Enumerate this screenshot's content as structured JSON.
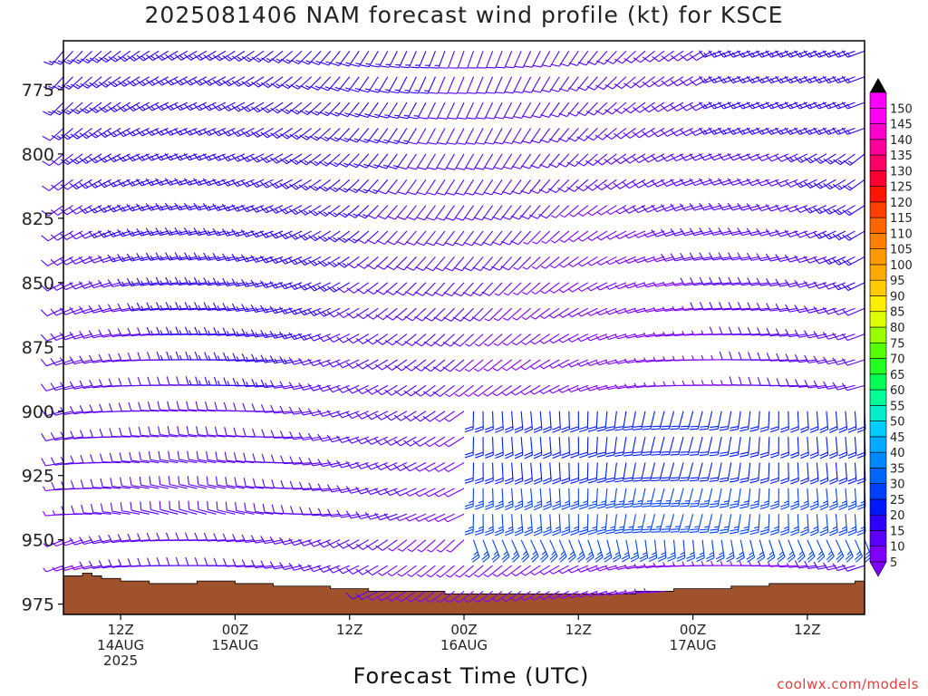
{
  "title": "2025081406 NAM forecast wind profile (kt) for KSCE",
  "credit": "coolwx.com/models",
  "chart_data": {
    "type": "wind-barb",
    "title": "2025081406 NAM forecast wind profile (kt) for KSCE",
    "xlabel": "Forecast Time (UTC)",
    "ylabel": "",
    "y_axis": {
      "ticks": [
        775,
        800,
        825,
        850,
        875,
        900,
        925,
        950,
        975
      ],
      "ylim": [
        979,
        756
      ],
      "units": "hPa"
    },
    "x_axis": {
      "ticks": [
        {
          "hour": 12,
          "lines": [
            "12Z",
            "14AUG",
            "2025"
          ]
        },
        {
          "hour": 24,
          "lines": [
            "00Z",
            "15AUG"
          ]
        },
        {
          "hour": 36,
          "lines": [
            "12Z"
          ]
        },
        {
          "hour": 48,
          "lines": [
            "00Z",
            "16AUG"
          ]
        },
        {
          "hour": 60,
          "lines": [
            "12Z"
          ]
        },
        {
          "hour": 72,
          "lines": [
            "00Z",
            "17AUG"
          ]
        },
        {
          "hour": 84,
          "lines": [
            "12Z"
          ]
        }
      ],
      "xlim": [
        6,
        90
      ],
      "units": "hours after 2025-08-14 00Z"
    },
    "colorbar": {
      "labels": [
        5,
        10,
        15,
        20,
        25,
        30,
        35,
        40,
        45,
        50,
        55,
        60,
        65,
        70,
        75,
        80,
        85,
        90,
        95,
        100,
        105,
        110,
        115,
        120,
        125,
        130,
        135,
        140,
        145,
        150
      ],
      "colors": [
        "#8000ff",
        "#5a00ff",
        "#2d00ff",
        "#0018ff",
        "#0040ff",
        "#0064ff",
        "#0088ff",
        "#00aaff",
        "#00ccff",
        "#00eecc",
        "#00ff99",
        "#00ff55",
        "#22ff22",
        "#55ff00",
        "#99ff00",
        "#ddff00",
        "#ffee00",
        "#ffcc00",
        "#ffaa00",
        "#ff9900",
        "#ff8000",
        "#ff6600",
        "#ff4000",
        "#ff1500",
        "#ff0033",
        "#ff0066",
        "#ff0099",
        "#ff00cc",
        "#ff00ee",
        "#ff00ff"
      ],
      "position": "right"
    },
    "terrain": {
      "color": "#a0522d",
      "x_hours": [
        6,
        7,
        8,
        9,
        10,
        11,
        12,
        13,
        14,
        15,
        16,
        17,
        18,
        20,
        22,
        24,
        26,
        28,
        30,
        32,
        34,
        36,
        38,
        40,
        42,
        44,
        46,
        48,
        50,
        52,
        54,
        56,
        58,
        60,
        62,
        64,
        66,
        68,
        70,
        72,
        74,
        76,
        78,
        80,
        82,
        84,
        86,
        88,
        89,
        90
      ],
      "surface_hpa": [
        964,
        964,
        963,
        964,
        965,
        965,
        966,
        966,
        966,
        967,
        967,
        967,
        967,
        966,
        966,
        967,
        967,
        968,
        968,
        968,
        969,
        969,
        970,
        970,
        970,
        970,
        971,
        971,
        971,
        971,
        971,
        971,
        971,
        971,
        971,
        971,
        970,
        970,
        969,
        969,
        969,
        968,
        968,
        967,
        967,
        967,
        967,
        967,
        966,
        966
      ]
    },
    "barbs": {
      "levels_hpa": [
        760,
        770,
        780,
        790,
        800,
        810,
        820,
        830,
        840,
        850,
        860,
        870,
        880,
        890,
        900,
        910,
        920,
        930,
        940,
        950,
        960,
        970
      ],
      "time_step_hours": 1,
      "grid": "hourly time steps by pressure level",
      "speed_range_kt": [
        3,
        25
      ],
      "prevailing": "southerly near surface veering to southwesterly aloft, stronger southerly jet 900-950 hPa after 16AUG 00Z"
    }
  }
}
